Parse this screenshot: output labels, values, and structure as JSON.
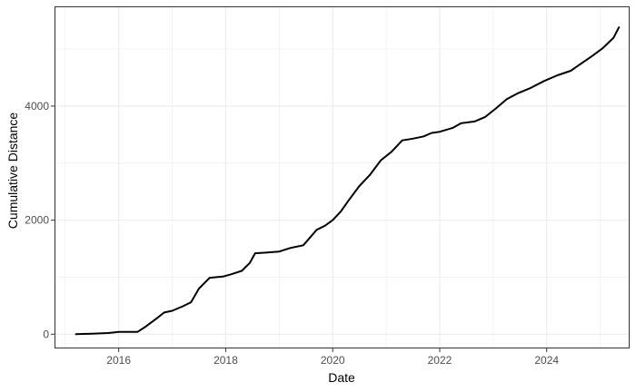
{
  "chart_data": {
    "type": "line",
    "title": "",
    "xlabel": "Date",
    "ylabel": "Cumulative Distance",
    "x_ticks": [
      2016,
      2018,
      2020,
      2022,
      2024
    ],
    "y_ticks": [
      0,
      2000,
      4000
    ],
    "x_tick_labels": [
      "2016",
      "2018",
      "2020",
      "2022",
      "2024"
    ],
    "y_tick_labels": [
      "0",
      "2000",
      "4000"
    ],
    "xlim": [
      2014.8,
      2025.55
    ],
    "ylim": [
      -250,
      5750
    ],
    "grid": true,
    "colors": {
      "line": "#000000",
      "grid": "#ebebeb",
      "panel_border": "#333333",
      "background": "#ffffff"
    },
    "series": [
      {
        "name": "Cumulative Distance",
        "x": [
          2015.2,
          2015.5,
          2015.8,
          2016.0,
          2016.35,
          2016.5,
          2016.7,
          2016.85,
          2017.0,
          2017.2,
          2017.35,
          2017.5,
          2017.7,
          2017.95,
          2018.1,
          2018.3,
          2018.45,
          2018.55,
          2018.75,
          2019.0,
          2019.2,
          2019.45,
          2019.6,
          2019.7,
          2019.85,
          2020.0,
          2020.15,
          2020.3,
          2020.5,
          2020.7,
          2020.9,
          2021.1,
          2021.3,
          2021.5,
          2021.7,
          2021.85,
          2022.0,
          2022.25,
          2022.4,
          2022.65,
          2022.85,
          2023.05,
          2023.25,
          2023.45,
          2023.7,
          2023.95,
          2024.2,
          2024.45,
          2024.65,
          2024.85,
          2025.05,
          2025.25,
          2025.35
        ],
        "y": [
          0,
          10,
          20,
          40,
          40,
          130,
          270,
          380,
          410,
          490,
          560,
          800,
          990,
          1010,
          1050,
          1110,
          1250,
          1420,
          1430,
          1450,
          1510,
          1560,
          1720,
          1830,
          1900,
          2000,
          2150,
          2350,
          2600,
          2800,
          3050,
          3200,
          3400,
          3430,
          3470,
          3530,
          3550,
          3620,
          3700,
          3730,
          3810,
          3960,
          4120,
          4220,
          4320,
          4440,
          4540,
          4620,
          4750,
          4880,
          5020,
          5200,
          5380
        ]
      }
    ]
  }
}
